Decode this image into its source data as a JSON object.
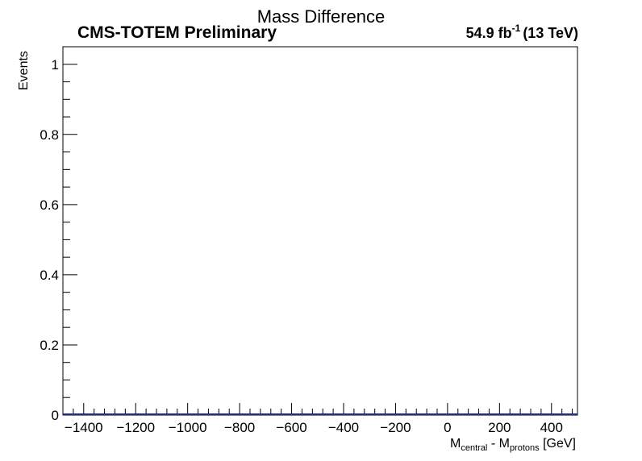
{
  "chart_data": {
    "type": "line",
    "title": "Mass Difference",
    "experiment_label": "CMS-TOTEM Preliminary",
    "luminosity_label": {
      "value": "54.9 fb",
      "exponent": "-1",
      "energy": "(13 TeV)"
    },
    "xlabel": {
      "main_1": "M",
      "sub_1": "central",
      "mid": " - M",
      "sub_2": "protons",
      "unit": " [GeV]"
    },
    "ylabel": "Events",
    "xlim": [
      -1480,
      500
    ],
    "ylim": [
      0,
      1.05
    ],
    "x_ticks": [
      -1400,
      -1200,
      -1000,
      -800,
      -600,
      -400,
      -200,
      0,
      200,
      400
    ],
    "x_tick_labels": [
      "−1400",
      "−1200",
      "−1000",
      "−800",
      "−600",
      "−400",
      "−200",
      "0",
      "200",
      "400"
    ],
    "y_ticks": [
      0,
      0.2,
      0.4,
      0.6,
      0.8,
      1
    ],
    "y_tick_labels": [
      "0",
      "0.2",
      "0.4",
      "0.6",
      "0.8",
      "1"
    ],
    "series": [
      {
        "color": "#1f2a8a",
        "x": [
          -1480,
          500
        ],
        "y": [
          0,
          0
        ]
      }
    ],
    "grid": false,
    "legend": "none"
  }
}
